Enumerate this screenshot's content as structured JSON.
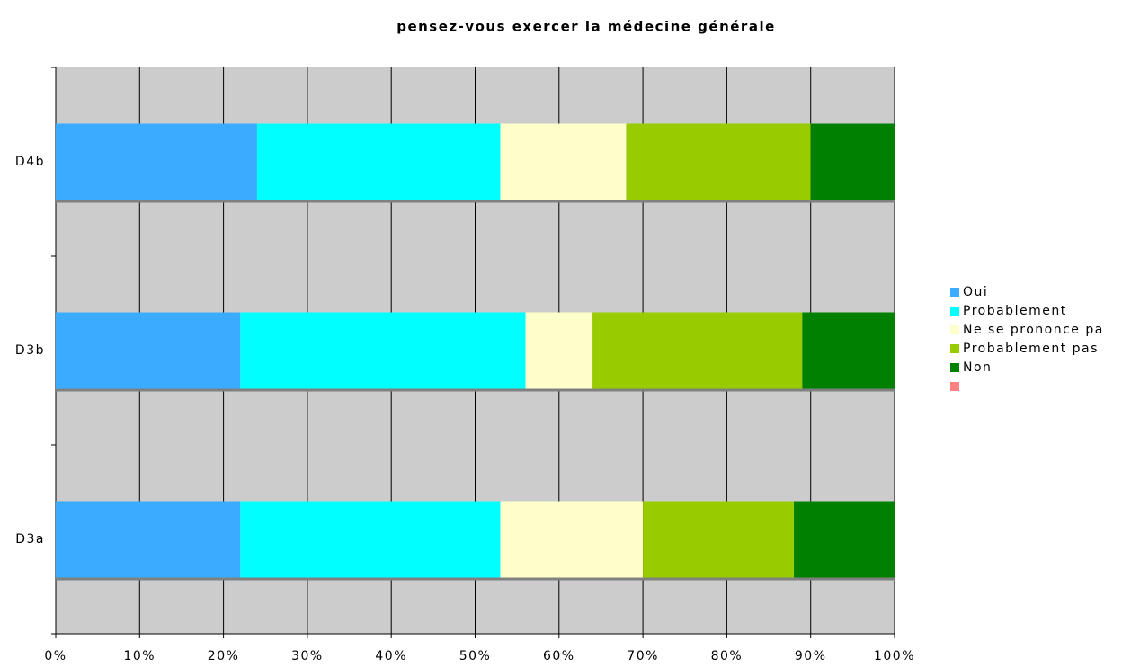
{
  "chart_data": {
    "type": "stacked-bar-horizontal",
    "title": "pensez-vous exercer la médecine générale",
    "categories": [
      "D3a",
      "D3b",
      "D4b"
    ],
    "series": [
      {
        "name": "Oui",
        "color": "#3aabff",
        "values": [
          22,
          22,
          24
        ]
      },
      {
        "name": "Probablement",
        "color": "#00ffff",
        "values": [
          31,
          34,
          29
        ]
      },
      {
        "name": "Ne se prononce pa",
        "color": "#ffffcc",
        "values": [
          17,
          8,
          15
        ]
      },
      {
        "name": "Probablement pas",
        "color": "#99cc00",
        "values": [
          18,
          25,
          22
        ]
      },
      {
        "name": "Non",
        "color": "#008000",
        "values": [
          12,
          11,
          10
        ]
      },
      {
        "name": null,
        "color": "#ff8080",
        "values": [
          0,
          0,
          0
        ]
      }
    ],
    "xlim": [
      0,
      100
    ],
    "xticks": [
      {
        "value": 0,
        "label": "0%"
      },
      {
        "value": 10,
        "label": "10%"
      },
      {
        "value": 20,
        "label": "20%"
      },
      {
        "value": 30,
        "label": "30%"
      },
      {
        "value": 40,
        "label": "40%"
      },
      {
        "value": 50,
        "label": "50%"
      },
      {
        "value": 60,
        "label": "60%"
      },
      {
        "value": 70,
        "label": "70%"
      },
      {
        "value": 80,
        "label": "80%"
      },
      {
        "value": 90,
        "label": "90%"
      },
      {
        "value": 100,
        "label": "100%"
      }
    ],
    "grid": true,
    "legend": "right"
  }
}
